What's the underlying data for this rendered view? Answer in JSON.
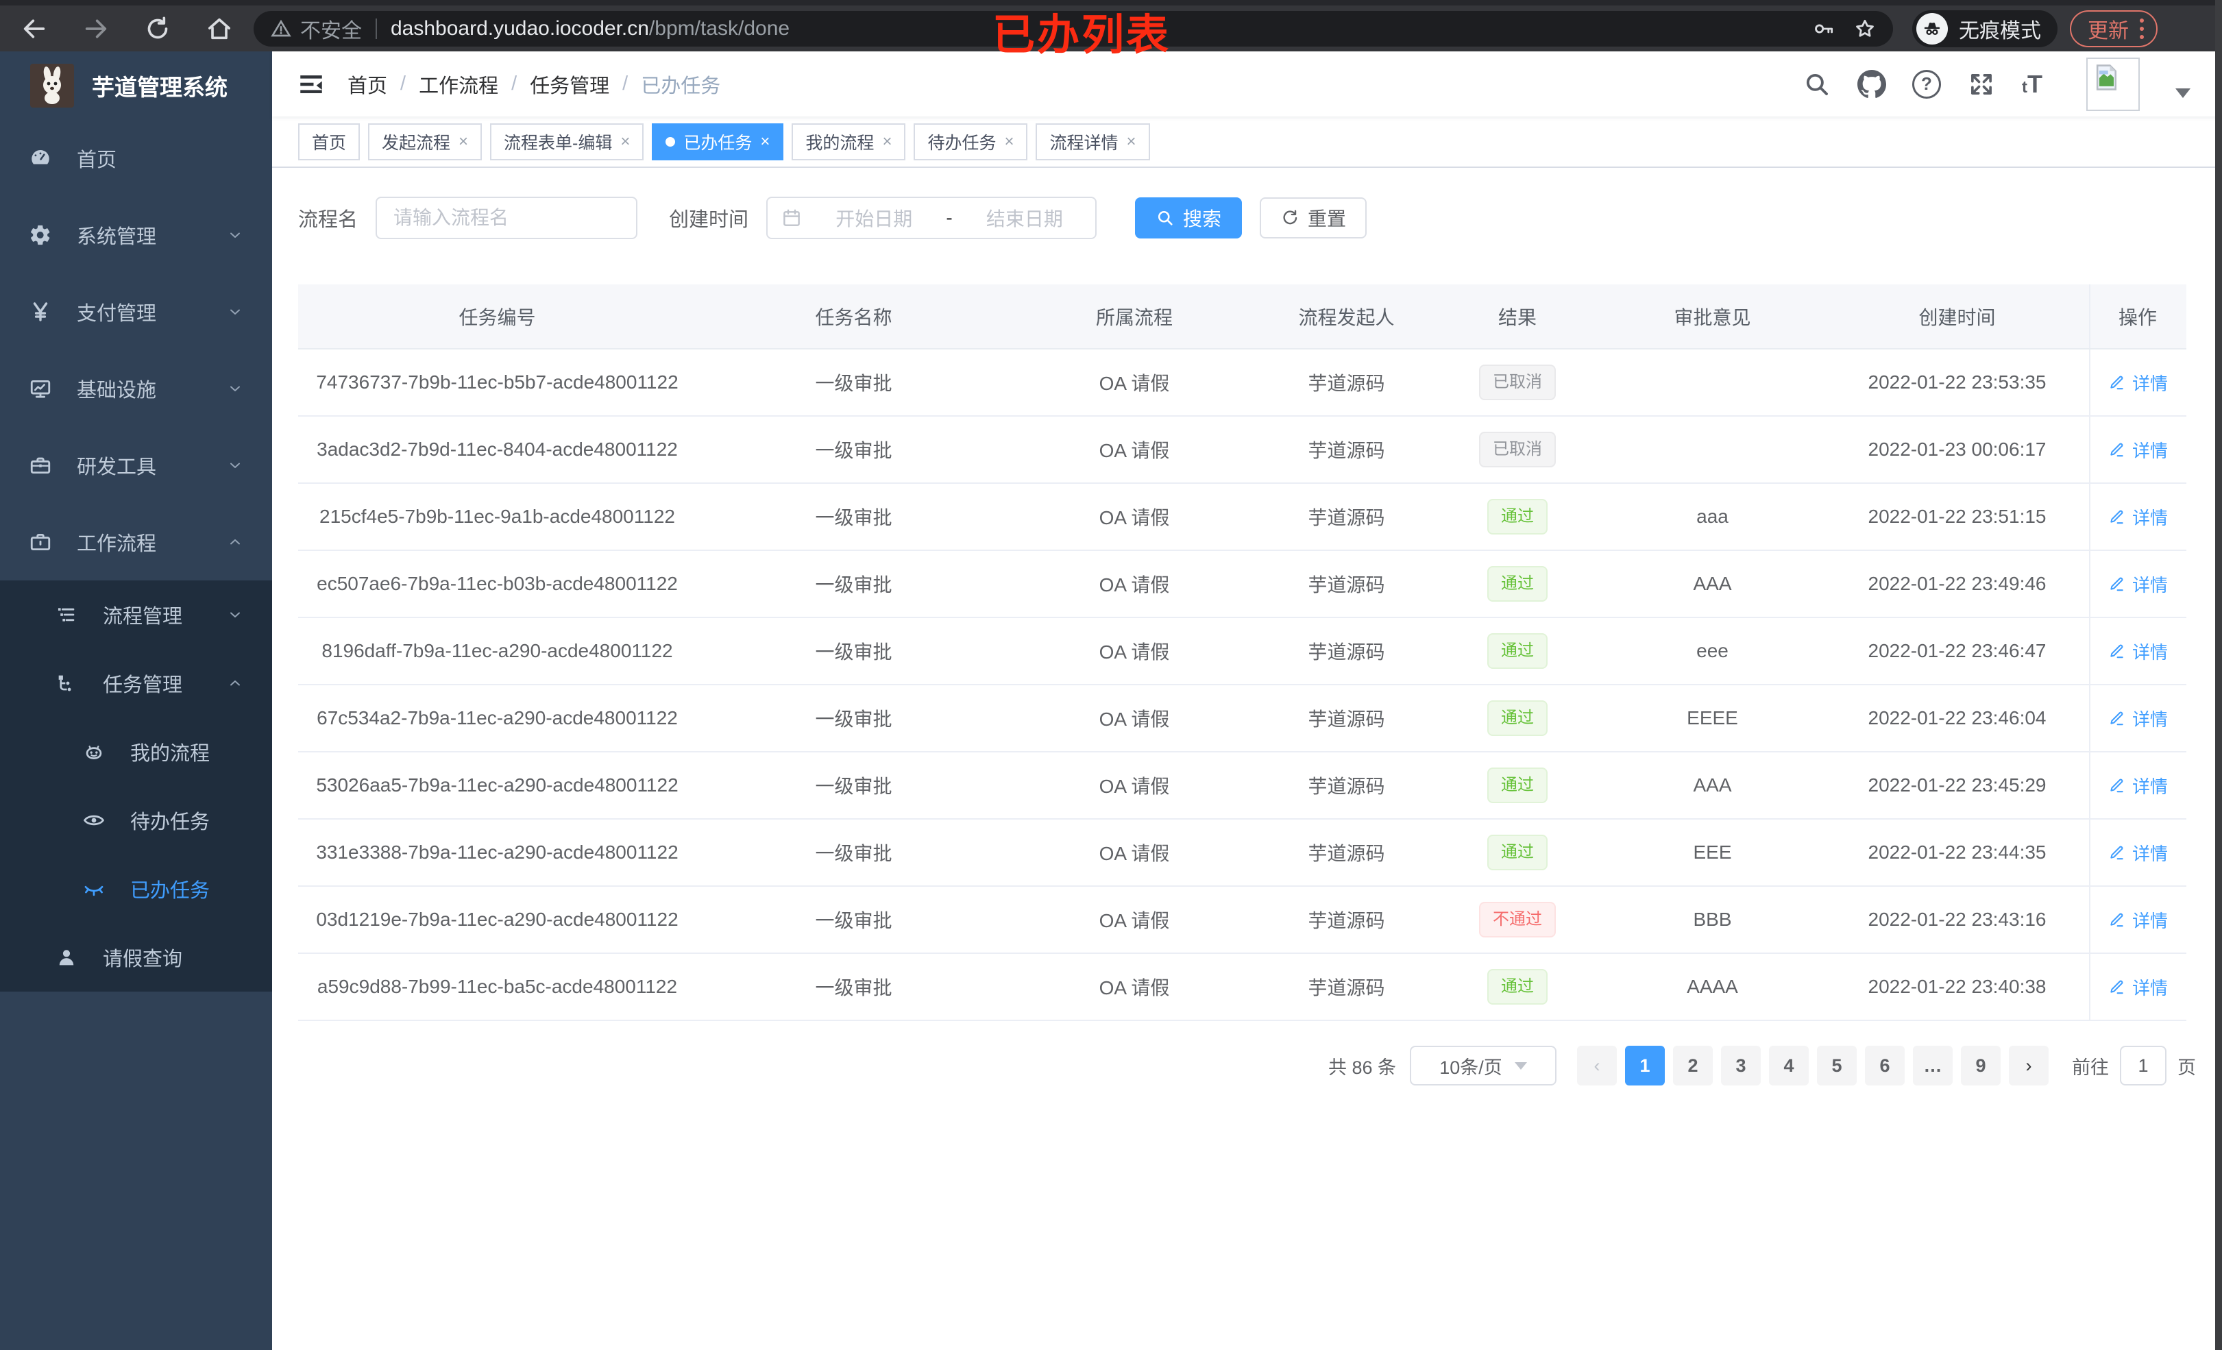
{
  "annotation": {
    "text": "已办列表",
    "color": "#fb2b12"
  },
  "browser": {
    "insecure_label": "不安全",
    "url_host": "dashboard.yudao.iocoder.cn",
    "url_path": "/bpm/task/done",
    "incognito_label": "无痕模式",
    "update_label": "更新"
  },
  "sidebar": {
    "title": "芋道管理系统",
    "items": [
      {
        "label": "首页",
        "icon": "dashboard-icon",
        "level": 0,
        "chevron": null,
        "dark": false,
        "active": false
      },
      {
        "label": "系统管理",
        "icon": "gear-icon",
        "level": 0,
        "chevron": "down",
        "dark": false,
        "active": false
      },
      {
        "label": "支付管理",
        "icon": "yen-icon",
        "level": 0,
        "chevron": "down",
        "dark": false,
        "active": false
      },
      {
        "label": "基础设施",
        "icon": "monitor-icon",
        "level": 0,
        "chevron": "down",
        "dark": false,
        "active": false
      },
      {
        "label": "研发工具",
        "icon": "toolbox-icon",
        "level": 0,
        "chevron": "down",
        "dark": false,
        "active": false
      },
      {
        "label": "工作流程",
        "icon": "briefcase-icon",
        "level": 0,
        "chevron": "up",
        "dark": false,
        "active": false
      },
      {
        "label": "流程管理",
        "icon": "list-tree-icon",
        "level": 1,
        "chevron": "down",
        "dark": true,
        "active": false
      },
      {
        "label": "任务管理",
        "icon": "subtask-icon",
        "level": 1,
        "chevron": "up",
        "dark": true,
        "active": false
      },
      {
        "label": "我的流程",
        "icon": "robot-icon",
        "level": 2,
        "chevron": null,
        "dark": true,
        "active": false
      },
      {
        "label": "待办任务",
        "icon": "eye-open-icon",
        "level": 2,
        "chevron": null,
        "dark": true,
        "active": false
      },
      {
        "label": "已办任务",
        "icon": "eye-closed-icon",
        "level": 2,
        "chevron": null,
        "dark": true,
        "active": true
      },
      {
        "label": "请假查询",
        "icon": "user-icon",
        "level": 1,
        "chevron": null,
        "dark": true,
        "active": false
      }
    ]
  },
  "header": {
    "breadcrumb": [
      "首页",
      "工作流程",
      "任务管理",
      "已办任务"
    ],
    "font_icon": "tT"
  },
  "tabs": [
    {
      "label": "首页",
      "closable": false,
      "active": false
    },
    {
      "label": "发起流程",
      "closable": true,
      "active": false
    },
    {
      "label": "流程表单-编辑",
      "closable": true,
      "active": false
    },
    {
      "label": "已办任务",
      "closable": true,
      "active": true
    },
    {
      "label": "我的流程",
      "closable": true,
      "active": false
    },
    {
      "label": "待办任务",
      "closable": true,
      "active": false
    },
    {
      "label": "流程详情",
      "closable": true,
      "active": false
    }
  ],
  "search": {
    "name_label": "流程名",
    "name_placeholder": "请输入流程名",
    "time_label": "创建时间",
    "start_placeholder": "开始日期",
    "dash": "-",
    "end_placeholder": "结束日期",
    "search_label": "搜索",
    "reset_label": "重置"
  },
  "table": {
    "headers": [
      "任务编号",
      "任务名称",
      "所属流程",
      "流程发起人",
      "结果",
      "审批意见",
      "创建时间",
      "操作"
    ],
    "action_label": "详情",
    "rows": [
      {
        "id": "74736737-7b9b-11ec-b5b7-acde48001122",
        "name": "一级审批",
        "process": "OA 请假",
        "starter": "芋道源码",
        "result": "已取消",
        "result_type": "info",
        "comment": "",
        "time": "2022-01-22 23:53:35"
      },
      {
        "id": "3adac3d2-7b9d-11ec-8404-acde48001122",
        "name": "一级审批",
        "process": "OA 请假",
        "starter": "芋道源码",
        "result": "已取消",
        "result_type": "info",
        "comment": "",
        "time": "2022-01-23 00:06:17"
      },
      {
        "id": "215cf4e5-7b9b-11ec-9a1b-acde48001122",
        "name": "一级审批",
        "process": "OA 请假",
        "starter": "芋道源码",
        "result": "通过",
        "result_type": "success",
        "comment": "aaa",
        "time": "2022-01-22 23:51:15"
      },
      {
        "id": "ec507ae6-7b9a-11ec-b03b-acde48001122",
        "name": "一级审批",
        "process": "OA 请假",
        "starter": "芋道源码",
        "result": "通过",
        "result_type": "success",
        "comment": "AAA",
        "time": "2022-01-22 23:49:46"
      },
      {
        "id": "8196daff-7b9a-11ec-a290-acde48001122",
        "name": "一级审批",
        "process": "OA 请假",
        "starter": "芋道源码",
        "result": "通过",
        "result_type": "success",
        "comment": "eee",
        "time": "2022-01-22 23:46:47"
      },
      {
        "id": "67c534a2-7b9a-11ec-a290-acde48001122",
        "name": "一级审批",
        "process": "OA 请假",
        "starter": "芋道源码",
        "result": "通过",
        "result_type": "success",
        "comment": "EEEE",
        "time": "2022-01-22 23:46:04"
      },
      {
        "id": "53026aa5-7b9a-11ec-a290-acde48001122",
        "name": "一级审批",
        "process": "OA 请假",
        "starter": "芋道源码",
        "result": "通过",
        "result_type": "success",
        "comment": "AAA",
        "time": "2022-01-22 23:45:29"
      },
      {
        "id": "331e3388-7b9a-11ec-a290-acde48001122",
        "name": "一级审批",
        "process": "OA 请假",
        "starter": "芋道源码",
        "result": "通过",
        "result_type": "success",
        "comment": "EEE",
        "time": "2022-01-22 23:44:35"
      },
      {
        "id": "03d1219e-7b9a-11ec-a290-acde48001122",
        "name": "一级审批",
        "process": "OA 请假",
        "starter": "芋道源码",
        "result": "不通过",
        "result_type": "danger",
        "comment": "BBB",
        "time": "2022-01-22 23:43:16"
      },
      {
        "id": "a59c9d88-7b99-11ec-ba5c-acde48001122",
        "name": "一级审批",
        "process": "OA 请假",
        "starter": "芋道源码",
        "result": "通过",
        "result_type": "success",
        "comment": "AAAA",
        "time": "2022-01-22 23:40:38"
      }
    ]
  },
  "pagination": {
    "total_label": "共 86 条",
    "page_size_label": "10条/页",
    "pages": [
      "1",
      "2",
      "3",
      "4",
      "5",
      "6",
      "…",
      "9"
    ],
    "active_page": "1",
    "goto_label": "前往",
    "goto_value": "1",
    "goto_suffix": "页"
  },
  "colors": {
    "accent": "#409eff",
    "success": "#67c23a",
    "danger": "#f56c6c",
    "info": "#909399",
    "sidebar_bg": "#304156",
    "sidebar_sub_bg": "#1f2d3d"
  }
}
